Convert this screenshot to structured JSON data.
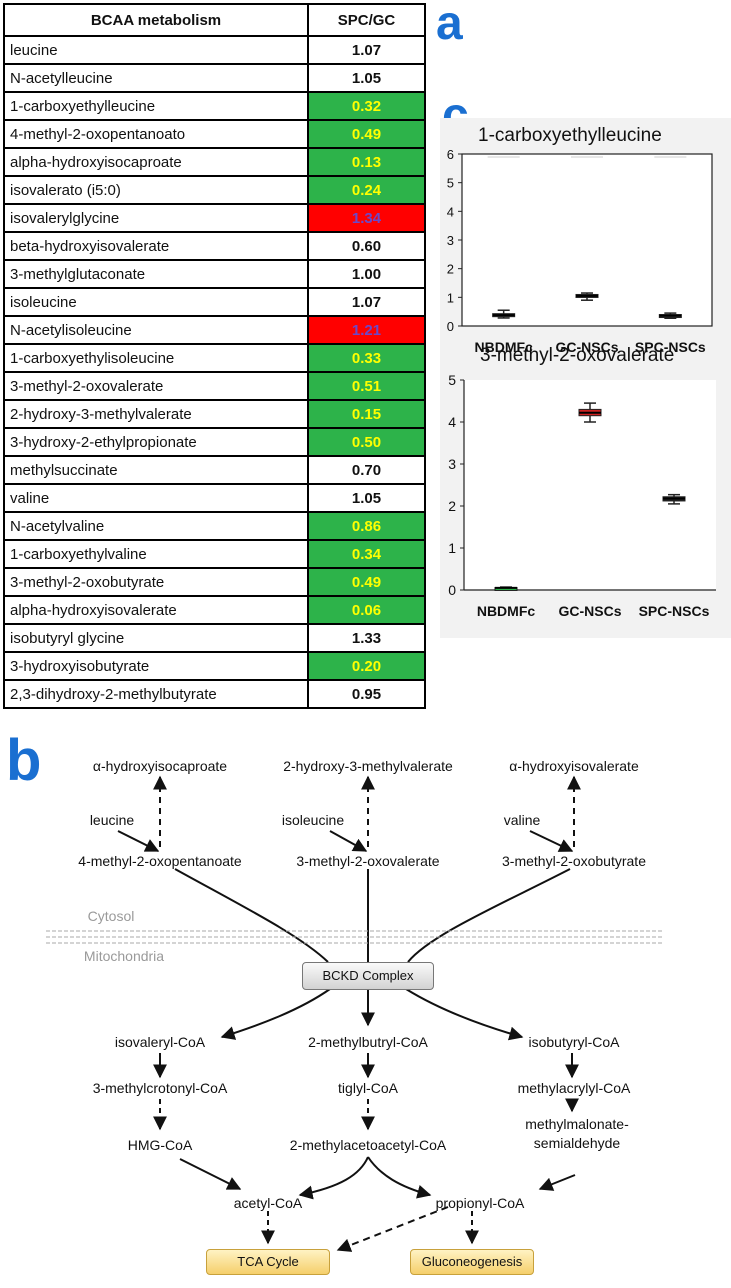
{
  "labels": {
    "a": "a",
    "b": "b",
    "c": "c"
  },
  "colors": {
    "green": "#2db34a",
    "red": "#ff0000",
    "yellow_text": "#ffff00",
    "red_text": "#6b49c9",
    "accent": "#1a6fd1"
  },
  "table": {
    "headers": [
      "BCAA metabolism",
      "SPC/GC"
    ],
    "rows": [
      {
        "name": "leucine",
        "value": "1.07",
        "fill": "none"
      },
      {
        "name": "N-acetylleucine",
        "value": "1.05",
        "fill": "none"
      },
      {
        "name": "1-carboxyethylleucine",
        "value": "0.32",
        "fill": "green"
      },
      {
        "name": "4-methyl-2-oxopentanoato",
        "value": "0.49",
        "fill": "green"
      },
      {
        "name": "alpha-hydroxyisocaproate",
        "value": "0.13",
        "fill": "green"
      },
      {
        "name": "isovalerato (i5:0)",
        "value": "0.24",
        "fill": "green"
      },
      {
        "name": "isovalerylglycine",
        "value": "1.34",
        "fill": "red"
      },
      {
        "name": "beta-hydroxyisovalerate",
        "value": "0.60",
        "fill": "none"
      },
      {
        "name": "3-methylglutaconate",
        "value": "1.00",
        "fill": "none"
      },
      {
        "name": "isoleucine",
        "value": "1.07",
        "fill": "none"
      },
      {
        "name": "N-acetylisoleucine",
        "value": "1.21",
        "fill": "red"
      },
      {
        "name": "1-carboxyethylisoleucine",
        "value": "0.33",
        "fill": "green"
      },
      {
        "name": "3-methyl-2-oxovalerate",
        "value": "0.51",
        "fill": "green"
      },
      {
        "name": "2-hydroxy-3-methylvalerate",
        "value": "0.15",
        "fill": "green"
      },
      {
        "name": "3-hydroxy-2-ethylpropionate",
        "value": "0.50",
        "fill": "green"
      },
      {
        "name": "methylsuccinate",
        "value": "0.70",
        "fill": "none"
      },
      {
        "name": "valine",
        "value": "1.05",
        "fill": "none"
      },
      {
        "name": "N-acetylvaline",
        "value": "0.86",
        "fill": "green"
      },
      {
        "name": "1-carboxyethylvaline",
        "value": "0.34",
        "fill": "green"
      },
      {
        "name": "3-methyl-2-oxobutyrate",
        "value": "0.49",
        "fill": "green"
      },
      {
        "name": "alpha-hydroxyisovalerate",
        "value": "0.06",
        "fill": "green"
      },
      {
        "name": "isobutyryl glycine",
        "value": "1.33",
        "fill": "none"
      },
      {
        "name": "3-hydroxyisobutyrate",
        "value": "0.20",
        "fill": "green"
      },
      {
        "name": "2,3-dihydroxy-2-methylbutyrate",
        "value": "0.95",
        "fill": "none"
      }
    ]
  },
  "chart_data": [
    {
      "type": "box",
      "title": "1-carboxyethylleucine",
      "categories": [
        "NBDMFc",
        "GC-NSCs",
        "SPC-NSCs"
      ],
      "ylim": [
        0,
        6
      ],
      "yticks": [
        "0",
        "1",
        "2",
        "3",
        "4",
        "5",
        "6"
      ],
      "boxes": [
        {
          "median": 0.38,
          "q1": 0.33,
          "q3": 0.43,
          "min": 0.28,
          "max": 0.55
        },
        {
          "median": 1.05,
          "q1": 1.0,
          "q3": 1.1,
          "min": 0.9,
          "max": 1.15
        },
        {
          "median": 0.36,
          "q1": 0.32,
          "q3": 0.4,
          "min": 0.27,
          "max": 0.45
        }
      ],
      "box_color": "#333333"
    },
    {
      "type": "box",
      "title": "3-methyl-2-oxovalerate",
      "categories": [
        "NBDMFc",
        "GC-NSCs",
        "SPC-NSCs"
      ],
      "ylim": [
        0,
        5
      ],
      "yticks": [
        "0",
        "1",
        "2",
        "3",
        "4",
        "5"
      ],
      "boxes": [
        {
          "median": 0.05,
          "q1": 0.04,
          "q3": 0.06,
          "min": 0.03,
          "max": 0.07
        },
        {
          "median": 4.22,
          "q1": 4.15,
          "q3": 4.3,
          "min": 4.0,
          "max": 4.45
        },
        {
          "median": 2.18,
          "q1": 2.12,
          "q3": 2.22,
          "min": 2.05,
          "max": 2.27
        }
      ],
      "box_colors": [
        "#2db34a",
        "#cc2222",
        "#222222"
      ]
    }
  ],
  "diagram": {
    "cytosol": "Cytosol",
    "mitochondria": "Mitochondria",
    "bckd": "BCKD Complex",
    "nodes": {
      "a_hydroxyisocaproate": "α-hydroxyisocaproate",
      "hydroxy_methylvalerate": "2-hydroxy-3-methylvalerate",
      "a_hydroxyisovalerate": "α-hydroxyisovalerate",
      "leucine": "leucine",
      "isoleucine": "isoleucine",
      "valine": "valine",
      "methyl_oxopentanoate": "4-methyl-2-oxopentanoate",
      "methyl_oxovalerate": "3-methyl-2-oxovalerate",
      "methyl_oxobutyrate": "3-methyl-2-oxobutyrate",
      "isovaleryl_coa": "isovaleryl-CoA",
      "methylbutryl_coa": "2-methylbutryl-CoA",
      "isobutyryl_coa": "isobutyryl-CoA",
      "methylcrotonyl_coa": "3-methylcrotonyl-CoA",
      "tiglyl_coa": "tiglyl-CoA",
      "methylacrylyl_coa": "methylacrylyl-CoA",
      "hmg_coa": "HMG-CoA",
      "methylacetoacetyl_coa": "2-methylacetoacetyl-CoA",
      "methylmalonate_1": "methylmalonate-",
      "methylmalonate_2": "semialdehyde",
      "acetyl_coa": "acetyl-CoA",
      "propionyl_coa": "propionyl-CoA",
      "tca": "TCA Cycle",
      "gluconeogenesis": "Gluconeogenesis"
    }
  }
}
